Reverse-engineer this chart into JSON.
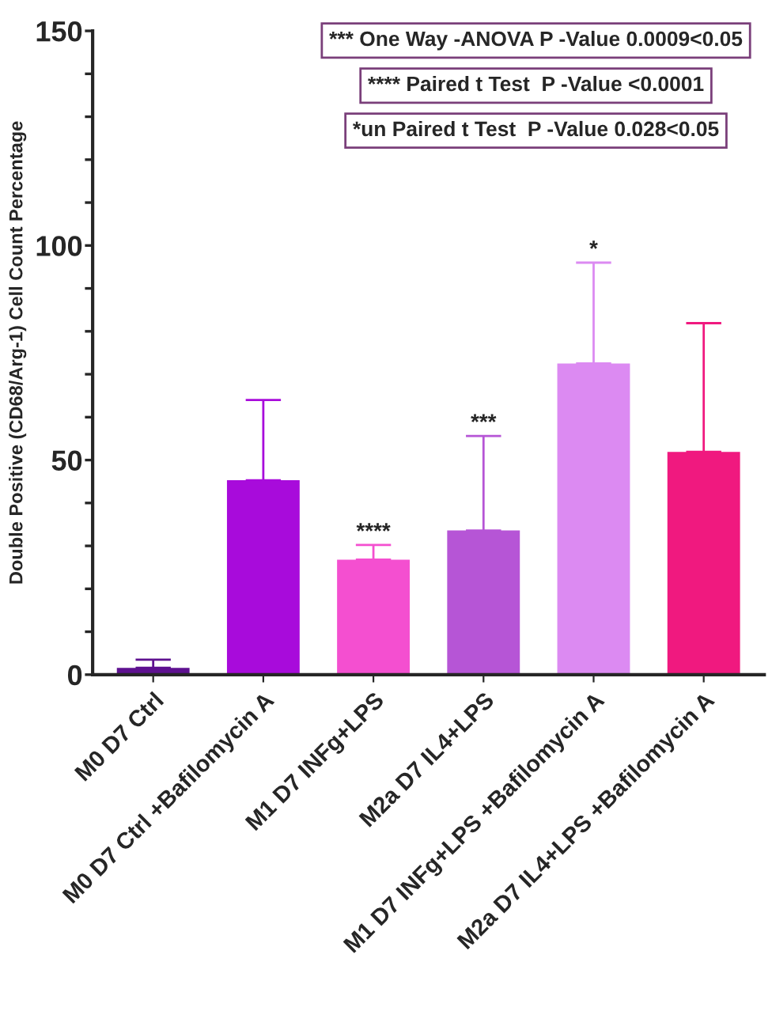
{
  "chart_data": {
    "type": "bar",
    "ylabel": "Double Positive (CD68/Arg-1) Cell Count Percentage",
    "categories": [
      "M0 D7 Ctrl",
      "M0 D7 Ctrl +Bafilomycin A",
      "M1 D7 INFg+LPS",
      "M2a D7 IL4+LPS",
      "M1 D7 INFg+LPS +Bafilomycin A",
      "M2a D7 IL4+LPS +Bafilomycin A"
    ],
    "values": [
      1.6,
      45.3,
      26.8,
      33.6,
      72.5,
      51.9
    ],
    "errors": [
      [
        1.6,
        3.5
      ],
      [
        45.3,
        64
      ],
      [
        26.8,
        30.2
      ],
      [
        33.6,
        55.6
      ],
      [
        72.5,
        96
      ],
      [
        51.9,
        81.9
      ]
    ],
    "colors": [
      "#5e1190",
      "#a80bdb",
      "#f44fd0",
      "#b655d6",
      "#dc8af2",
      "#f0197f"
    ],
    "ylim": [
      0,
      150
    ],
    "yticks": [
      0,
      {
        "value": 10,
        "label": null
      },
      {
        "value": 20,
        "label": null
      },
      {
        "value": 30,
        "label": null
      },
      {
        "value": 40,
        "label": null
      },
      50,
      {
        "value": 60,
        "label": null
      },
      {
        "value": 70,
        "label": null
      },
      {
        "value": 80,
        "label": null
      },
      {
        "value": 90,
        "label": null
      },
      100,
      {
        "value": 110,
        "label": null
      },
      {
        "value": 120,
        "label": null
      },
      {
        "value": 130,
        "label": null
      },
      {
        "value": 140,
        "label": null
      },
      150
    ],
    "grid": false,
    "legend": false,
    "annotations": [
      "*** One Way -ANOVA P -Value 0.0009<0.05",
      "**** Paired t Test  P -Value <0.0001",
      "*un Paired t Test  P -Value 0.028<0.05",
      "****",
      "***",
      "*"
    ]
  }
}
